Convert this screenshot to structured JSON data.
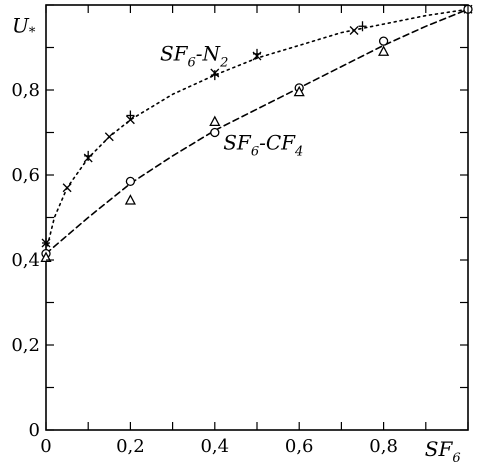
{
  "chart_data": {
    "type": "scatter",
    "xlabel": "SF",
    "xlabel_sub": "6",
    "ylabel": "U",
    "ylabel_sub": "*",
    "xlim": [
      0,
      1
    ],
    "ylim": [
      0,
      1
    ],
    "x_ticks": [
      0,
      0.1,
      0.2,
      0.3,
      0.4,
      0.5,
      0.6,
      0.7,
      0.8,
      0.9,
      1.0
    ],
    "x_tick_labels": [
      {
        "value": 0,
        "label": "0"
      },
      {
        "value": 0.2,
        "label": "0,2"
      },
      {
        "value": 0.4,
        "label": "0,4"
      },
      {
        "value": 0.6,
        "label": "0,6"
      },
      {
        "value": 0.8,
        "label": "0,8"
      }
    ],
    "y_ticks": [
      0,
      0.1,
      0.2,
      0.3,
      0.4,
      0.5,
      0.6,
      0.7,
      0.8,
      0.9,
      1.0
    ],
    "y_tick_labels": [
      {
        "value": 0,
        "label": "0"
      },
      {
        "value": 0.2,
        "label": "0,2"
      },
      {
        "value": 0.4,
        "label": "0,4"
      },
      {
        "value": 0.6,
        "label": "0,6"
      },
      {
        "value": 0.8,
        "label": "0,8"
      }
    ],
    "annotations": [
      {
        "id": "sf6-n2",
        "parts": [
          {
            "t": "SF",
            "sub": false
          },
          {
            "t": "6",
            "sub": true
          },
          {
            "t": "-N",
            "sub": false
          },
          {
            "t": "2",
            "sub": true
          }
        ],
        "x": 0.27,
        "y": 0.87
      },
      {
        "id": "sf6-cf4",
        "parts": [
          {
            "t": "SF",
            "sub": false
          },
          {
            "t": "6",
            "sub": true
          },
          {
            "t": "-CF",
            "sub": false
          },
          {
            "t": "4",
            "sub": true
          }
        ],
        "x": 0.42,
        "y": 0.66
      }
    ],
    "series": [
      {
        "marker": "x",
        "curve": "dotted",
        "points": [
          [
            0.0,
            0.44
          ],
          [
            0.05,
            0.57
          ],
          [
            0.1,
            0.64
          ],
          [
            0.15,
            0.69
          ],
          [
            0.2,
            0.73
          ],
          [
            0.4,
            0.84
          ],
          [
            0.5,
            0.88
          ],
          [
            0.73,
            0.94
          ],
          [
            1.0,
            0.99
          ]
        ]
      },
      {
        "marker": "+",
        "points": [
          [
            0.0,
            0.44
          ],
          [
            0.1,
            0.645
          ],
          [
            0.2,
            0.74
          ],
          [
            0.4,
            0.835
          ],
          [
            0.5,
            0.885
          ],
          [
            0.75,
            0.95
          ]
        ]
      },
      {
        "marker": "circle",
        "curve": "dotted",
        "points": [
          [
            0.0,
            0.415
          ],
          [
            0.2,
            0.585
          ],
          [
            0.4,
            0.7
          ],
          [
            0.6,
            0.805
          ],
          [
            0.8,
            0.915
          ],
          [
            1.0,
            0.99
          ]
        ]
      },
      {
        "marker": "triangle",
        "points": [
          [
            0.0,
            0.405
          ],
          [
            0.2,
            0.54
          ],
          [
            0.4,
            0.725
          ],
          [
            0.6,
            0.795
          ],
          [
            0.8,
            0.89
          ]
        ]
      }
    ],
    "curves": [
      {
        "style": "dotted",
        "points": [
          [
            0.0,
            0.42
          ],
          [
            0.02,
            0.5
          ],
          [
            0.05,
            0.57
          ],
          [
            0.1,
            0.64
          ],
          [
            0.15,
            0.69
          ],
          [
            0.2,
            0.73
          ],
          [
            0.3,
            0.79
          ],
          [
            0.4,
            0.835
          ],
          [
            0.5,
            0.875
          ],
          [
            0.6,
            0.905
          ],
          [
            0.7,
            0.935
          ],
          [
            0.8,
            0.955
          ],
          [
            0.9,
            0.975
          ],
          [
            1.0,
            0.99
          ]
        ]
      },
      {
        "style": "dashed",
        "points": [
          [
            0.0,
            0.415
          ],
          [
            0.1,
            0.5
          ],
          [
            0.2,
            0.58
          ],
          [
            0.3,
            0.645
          ],
          [
            0.4,
            0.705
          ],
          [
            0.5,
            0.755
          ],
          [
            0.6,
            0.805
          ],
          [
            0.7,
            0.855
          ],
          [
            0.8,
            0.905
          ],
          [
            0.9,
            0.95
          ],
          [
            1.0,
            0.99
          ]
        ]
      }
    ]
  }
}
